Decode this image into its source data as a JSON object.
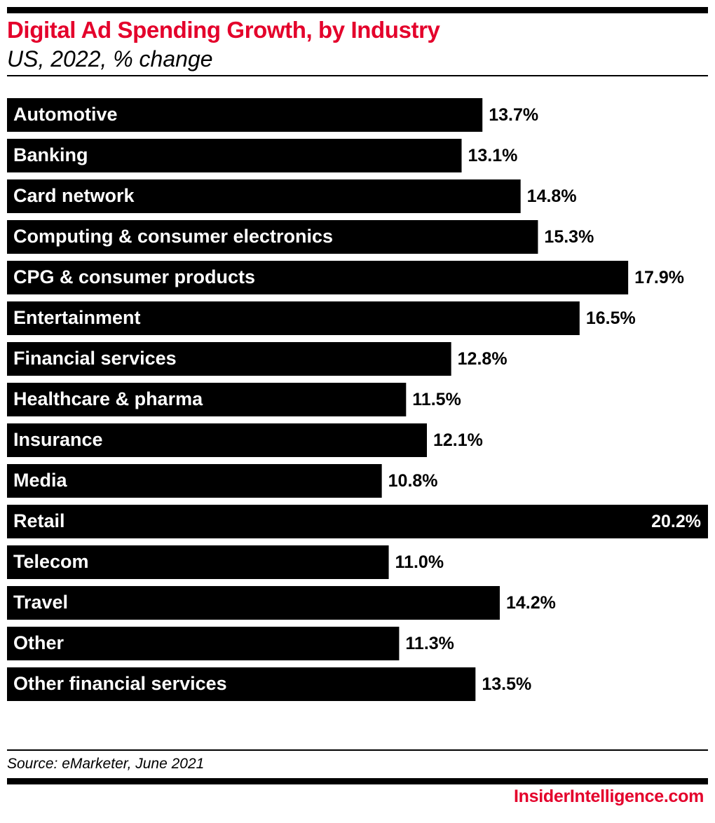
{
  "header": {
    "title": "Digital Ad Spending Growth, by Industry",
    "subtitle": "US, 2022, % change"
  },
  "footer": {
    "source": "Source: eMarketer, June 2021",
    "brand_insider": "Insider",
    "brand_intelligence": "Intelligence",
    "brand_com": ".com"
  },
  "colors": {
    "accent": "#e4002b",
    "bar": "#000000",
    "bar_text": "#ffffff"
  },
  "chart_data": {
    "type": "bar",
    "orientation": "horizontal",
    "title": "Digital Ad Spending Growth, by Industry",
    "subtitle": "US, 2022, % change",
    "categories": [
      "Automotive",
      "Banking",
      "Card network",
      "Computing & consumer electronics",
      "CPG & consumer products",
      "Entertainment",
      "Financial services",
      "Healthcare & pharma",
      "Insurance",
      "Media",
      "Retail",
      "Telecom",
      "Travel",
      "Other",
      "Other financial services"
    ],
    "values": [
      13.7,
      13.1,
      14.8,
      15.3,
      17.9,
      16.5,
      12.8,
      11.5,
      12.1,
      10.8,
      20.2,
      11.0,
      14.2,
      11.3,
      13.5
    ],
    "value_labels": [
      "13.7%",
      "13.1%",
      "14.8%",
      "15.3%",
      "17.9%",
      "16.5%",
      "12.8%",
      "11.5%",
      "12.1%",
      "10.8%",
      "20.2%",
      "11.0%",
      "14.2%",
      "11.3%",
      "13.5%"
    ],
    "grid": false,
    "legend": "none"
  }
}
